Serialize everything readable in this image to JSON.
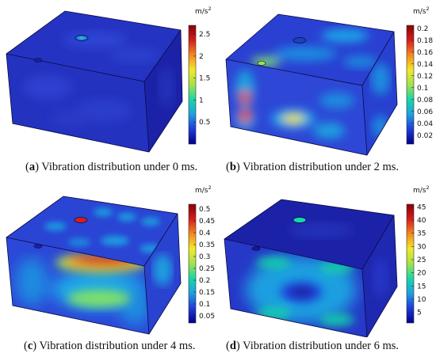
{
  "colors": {
    "box_deep": "#1a1aa8",
    "box_mid": "#2a3ad0",
    "colormap": [
      "#00008b",
      "#1f3bd9",
      "#1f9fe0",
      "#19d6a8",
      "#a4e24a",
      "#f2e82a",
      "#f5891e",
      "#d31e1e",
      "#8b0000"
    ]
  },
  "panels": [
    {
      "letter": "a",
      "caption": "Vibration distribution under 0 ms.",
      "unit_base": "m/s",
      "unit_exp": "2",
      "ticks": [
        "2.5",
        "2",
        "1.5",
        "1",
        "0.5"
      ],
      "tick_values": [
        2.5,
        2.0,
        1.5,
        1.0,
        0.5
      ],
      "vmin": 0.0,
      "vmax": 2.7
    },
    {
      "letter": "b",
      "caption": "Vibration distribution under 2 ms.",
      "unit_base": "m/s",
      "unit_exp": "2",
      "ticks": [
        "0.2",
        "0.18",
        "0.16",
        "0.14",
        "0.12",
        "0.1",
        "0.08",
        "0.06",
        "0.04",
        "0.02"
      ],
      "tick_values": [
        0.2,
        0.18,
        0.16,
        0.14,
        0.12,
        0.1,
        0.08,
        0.06,
        0.04,
        0.02
      ],
      "vmin": 0.005,
      "vmax": 0.205
    },
    {
      "letter": "c",
      "caption": "Vibration distribution under 4 ms.",
      "unit_base": "m/s",
      "unit_exp": "2",
      "ticks": [
        "0.5",
        "0.45",
        "0.4",
        "0.35",
        "0.3",
        "0.25",
        "0.2",
        "0.15",
        "0.1",
        "0.05"
      ],
      "tick_values": [
        0.5,
        0.45,
        0.4,
        0.35,
        0.3,
        0.25,
        0.2,
        0.15,
        0.1,
        0.05
      ],
      "vmin": 0.02,
      "vmax": 0.52
    },
    {
      "letter": "d",
      "caption": "Vibration distribution under 6 ms.",
      "unit_base": "m/s",
      "unit_exp": "2",
      "ticks": [
        "45",
        "40",
        "35",
        "30",
        "25",
        "20",
        "15",
        "10",
        "5"
      ],
      "tick_values": [
        45,
        40,
        35,
        30,
        25,
        20,
        15,
        10,
        5
      ],
      "vmin": 1,
      "vmax": 46
    }
  ]
}
